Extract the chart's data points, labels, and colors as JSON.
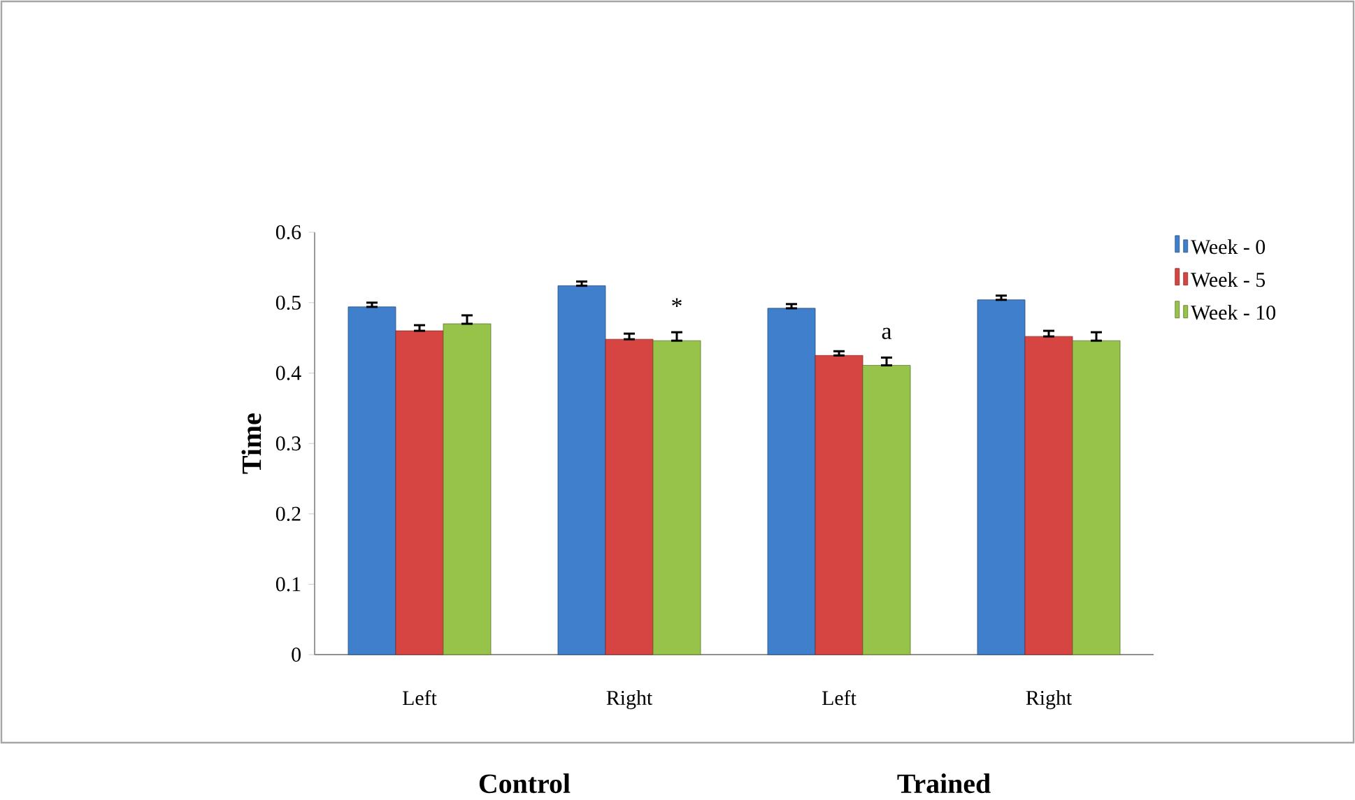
{
  "chart_data": {
    "type": "bar",
    "ylabel": "Time",
    "categories": [
      "Left",
      "Right",
      "Left",
      "Right"
    ],
    "series": [
      {
        "name": "Week - 0",
        "color": "#3f7fcc",
        "values": [
          0.494,
          0.524,
          0.492,
          0.504
        ],
        "errors": [
          [
            0.494,
            0.5
          ],
          [
            0.524,
            0.53
          ],
          [
            0.492,
            0.498
          ],
          [
            0.504,
            0.51
          ]
        ]
      },
      {
        "name": "Week - 5",
        "color": "#d64541",
        "values": [
          0.46,
          0.448,
          0.425,
          0.452
        ],
        "errors": [
          [
            0.46,
            0.468
          ],
          [
            0.448,
            0.456
          ],
          [
            0.425,
            0.431
          ],
          [
            0.452,
            0.46
          ]
        ]
      },
      {
        "name": "Week - 10",
        "color": "#98c34a",
        "values": [
          0.47,
          0.446,
          0.411,
          0.446
        ],
        "errors": [
          [
            0.47,
            0.482
          ],
          [
            0.446,
            0.458
          ],
          [
            0.411,
            0.422
          ],
          [
            0.446,
            0.458
          ]
        ]
      }
    ],
    "ylim": [
      0,
      0.6
    ],
    "yticks": [
      0,
      0.1,
      0.2,
      0.3,
      0.4,
      0.5,
      0.6
    ],
    "annotations": [
      "*",
      "a",
      "Control",
      "Trained"
    ],
    "legend": "top right"
  }
}
